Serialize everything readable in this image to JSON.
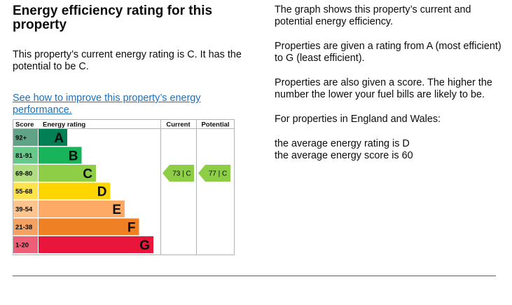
{
  "left": {
    "title": "Energy efficiency rating for this property",
    "current_text": "This property’s current energy rating is C. It has the potential to be C.",
    "link_text": "See how to improve this property’s energy performance."
  },
  "chart": {
    "col_score": "Score",
    "col_rating": "Energy rating",
    "col_current": "Current",
    "col_potential": "Potential",
    "bands": [
      {
        "score": "92+",
        "letter": "A",
        "color": "#008054",
        "score_bg": "#61a386"
      },
      {
        "score": "81-91",
        "letter": "B",
        "color": "#19b459",
        "score_bg": "#66c88b"
      },
      {
        "score": "69-80",
        "letter": "C",
        "color": "#8dce46",
        "score_bg": "#afdd7f"
      },
      {
        "score": "55-68",
        "letter": "D",
        "color": "#ffd500",
        "score_bg": "#ffe34e"
      },
      {
        "score": "39-54",
        "letter": "E",
        "color": "#fcaa65",
        "score_bg": "#fdc48d"
      },
      {
        "score": "21-38",
        "letter": "F",
        "color": "#ef8023",
        "score_bg": "#f3a263"
      },
      {
        "score": "1-20",
        "letter": "G",
        "color": "#e9153b",
        "score_bg": "#ef5e77"
      }
    ],
    "current": {
      "label": "73 | C",
      "band": 2,
      "color": "#8dce46"
    },
    "potential": {
      "label": "77 | C",
      "band": 2,
      "color": "#8dce46"
    }
  },
  "right": {
    "p1": "The graph shows this property’s current and potential energy efficiency.",
    "p2": "Properties are given a rating from A (most efficient) to G (least efficient).",
    "p3": "Properties are also given a score. The higher the number the lower your fuel bills are likely to be.",
    "p4": "For properties in England and Wales:",
    "avg_rating": "the average energy rating is D",
    "avg_score": "the average energy score is 60"
  }
}
